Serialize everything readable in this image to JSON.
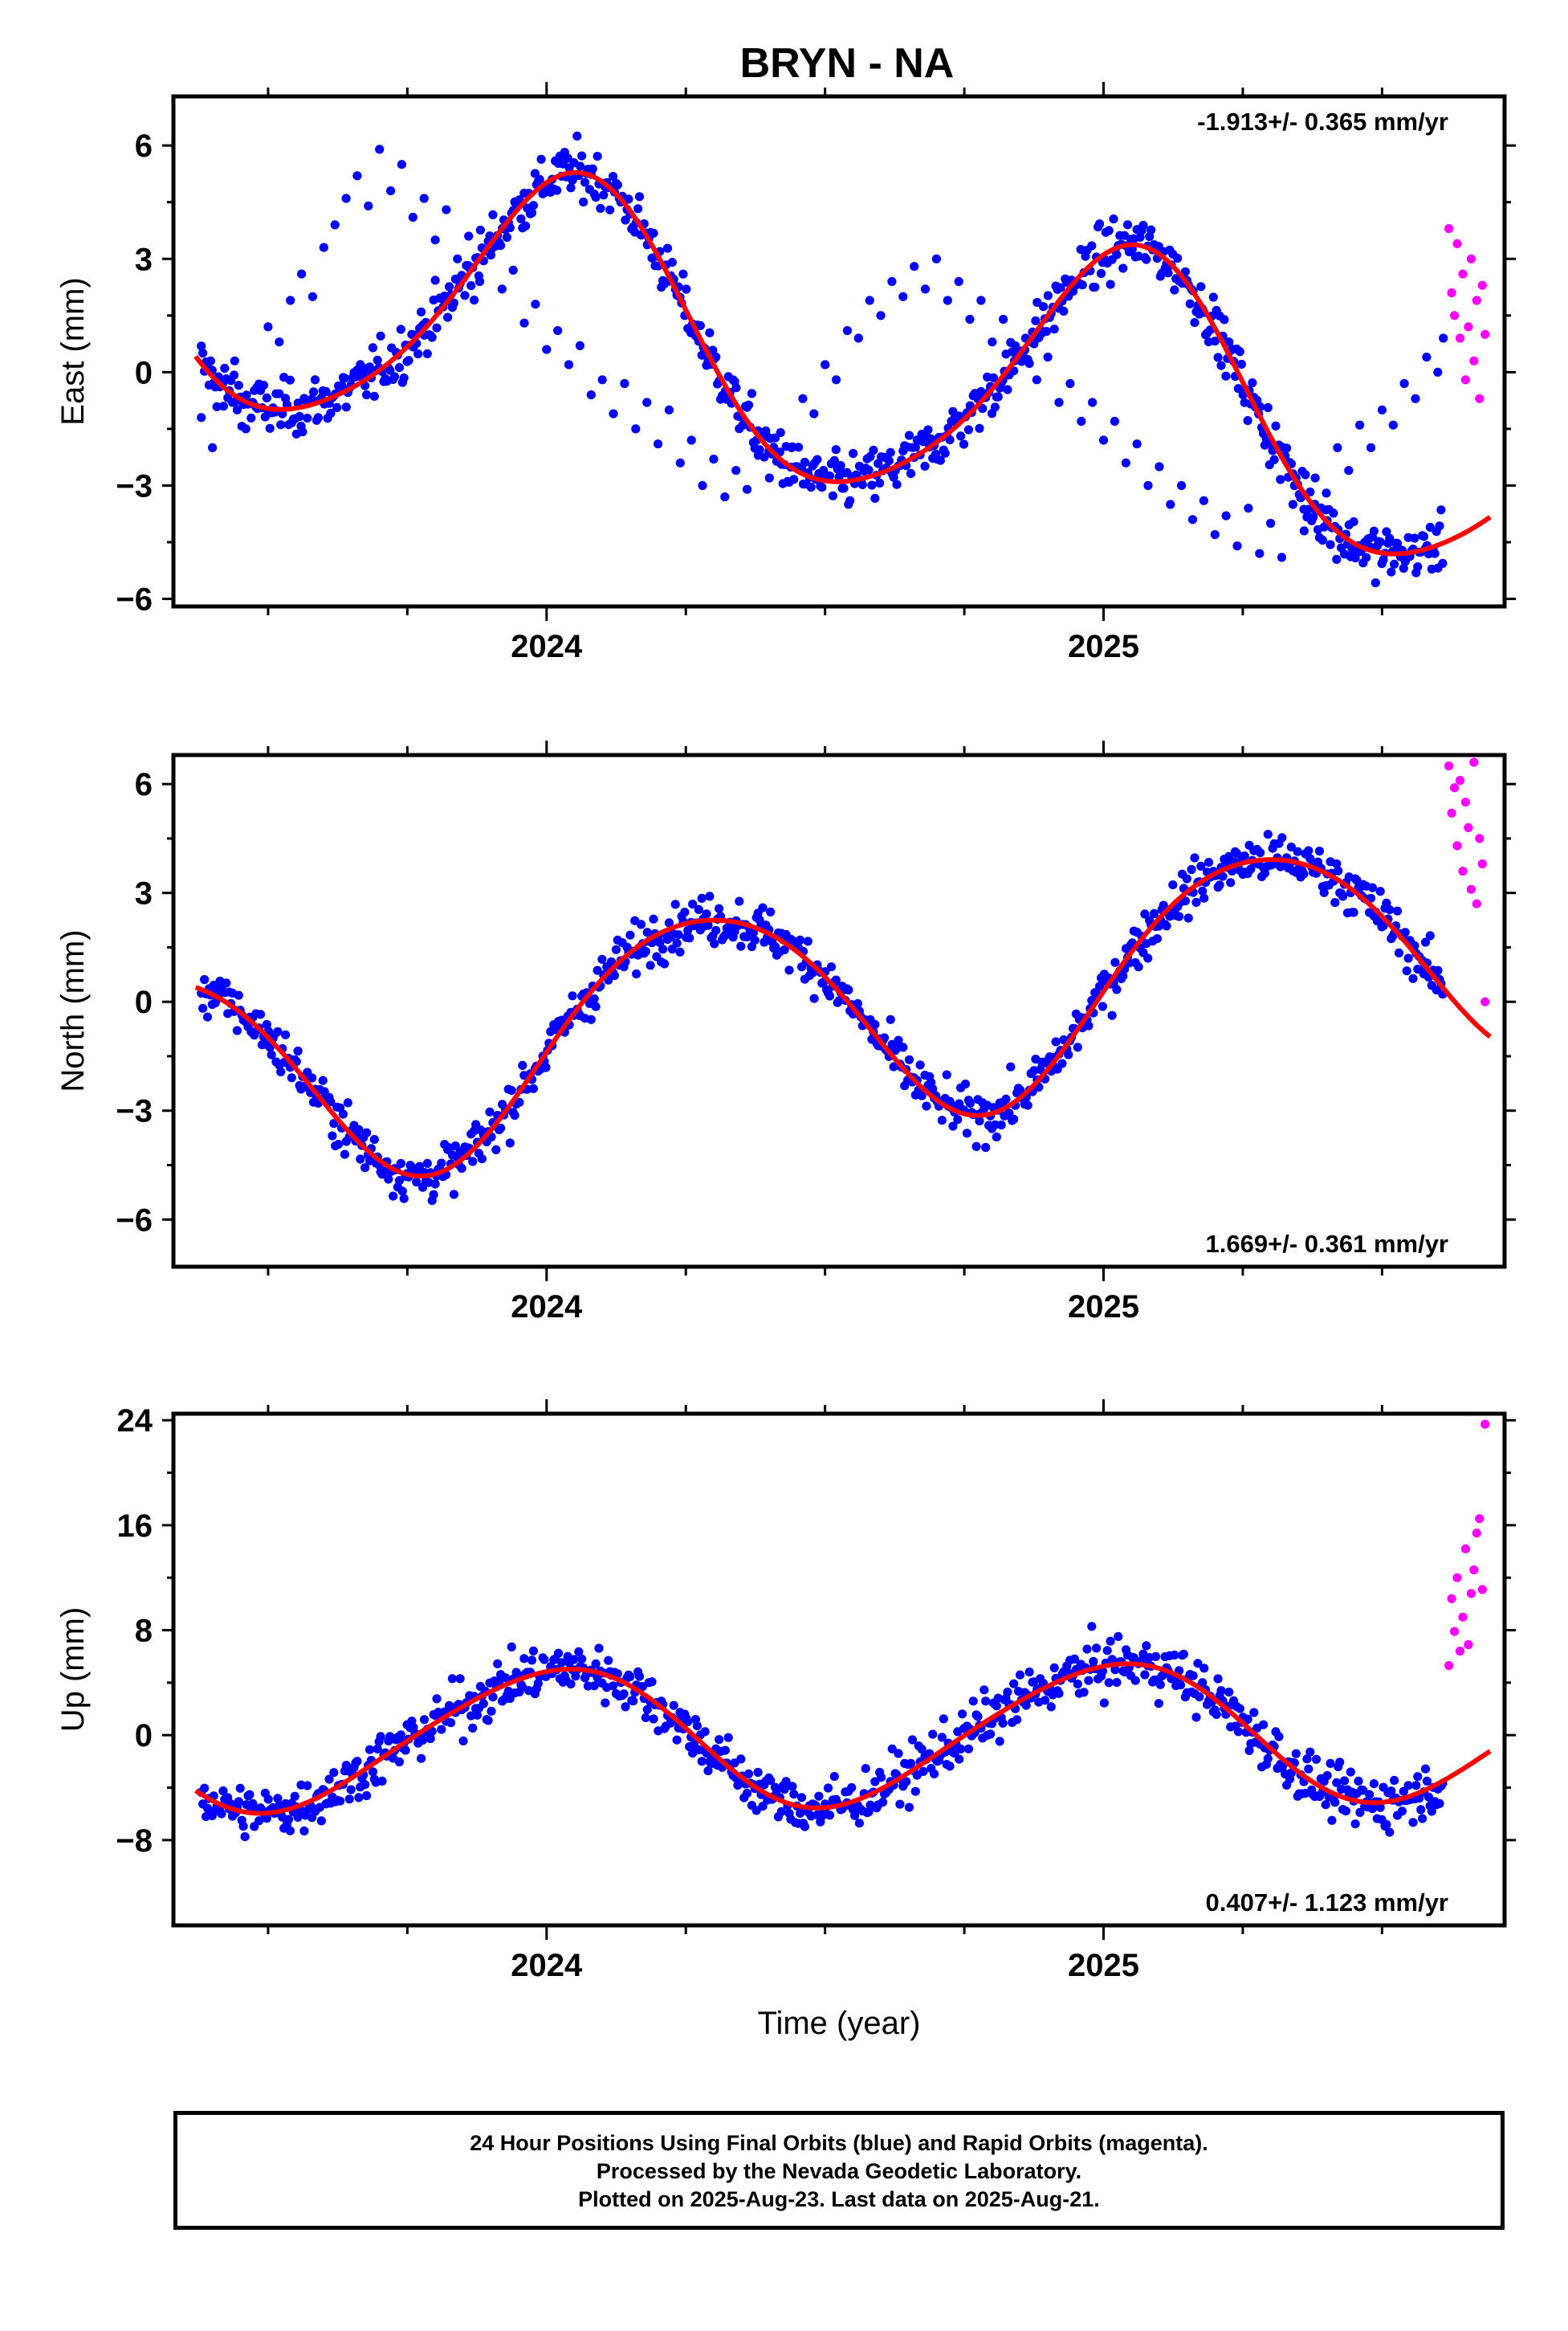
{
  "title": "BRYN - NA",
  "footer": {
    "line1": "24 Hour Positions Using Final Orbits (blue) and Rapid Orbits (magenta).",
    "line2": "Processed by the Nevada Geodetic Laboratory.",
    "line3": "Plotted on 2025-Aug-23. Last data on 2025-Aug-21."
  },
  "colors": {
    "final_orbits": "#0000ff",
    "rapid_orbits": "#ff00ff",
    "fit_line": "#ff0000",
    "frame": "#000000"
  },
  "chart_data": [
    {
      "type": "scatter",
      "id": "east",
      "ylabel": "East (mm)",
      "xlabel": "",
      "rate_label": "-1.913+/- 0.365 mm/yr",
      "rate_position": "top-right",
      "xlim": [
        2023.33,
        2025.72
      ],
      "ylim": [
        -6.2,
        7.3
      ],
      "xticks": [
        2024,
        2025
      ],
      "xtick_labels": [
        "2024",
        "2025"
      ],
      "yticks": [
        -6,
        -3,
        0,
        3,
        6
      ],
      "ytick_labels": [
        "−6",
        "−3",
        "0",
        "3",
        "6"
      ],
      "grid": false,
      "series": [
        {
          "name": "Final Orbits",
          "color": "blue",
          "x_range": [
            2023.38,
            2025.61
          ],
          "points": [
            [
              2023.38,
              -1.2
            ],
            [
              2023.4,
              -2.0
            ],
            [
              2023.42,
              -0.9
            ],
            [
              2023.44,
              0.3
            ],
            [
              2023.46,
              -1.5
            ],
            [
              2023.48,
              -0.4
            ],
            [
              2023.5,
              1.2
            ],
            [
              2023.52,
              0.8
            ],
            [
              2023.54,
              1.9
            ],
            [
              2023.56,
              2.6
            ],
            [
              2023.58,
              2.0
            ],
            [
              2023.6,
              3.3
            ],
            [
              2023.62,
              3.9
            ],
            [
              2023.64,
              4.6
            ],
            [
              2023.66,
              5.2
            ],
            [
              2023.68,
              4.4
            ],
            [
              2023.7,
              5.9
            ],
            [
              2023.72,
              4.8
            ],
            [
              2023.74,
              5.5
            ],
            [
              2023.76,
              4.1
            ],
            [
              2023.78,
              4.6
            ],
            [
              2023.8,
              3.5
            ],
            [
              2023.82,
              4.3
            ],
            [
              2023.84,
              3.0
            ],
            [
              2023.86,
              3.6
            ],
            [
              2023.88,
              2.4
            ],
            [
              2023.9,
              3.1
            ],
            [
              2023.92,
              2.2
            ],
            [
              2023.94,
              2.7
            ],
            [
              2023.96,
              1.3
            ],
            [
              2023.98,
              1.8
            ],
            [
              2024.0,
              0.6
            ],
            [
              2024.02,
              1.1
            ],
            [
              2024.04,
              0.2
            ],
            [
              2024.06,
              0.7
            ],
            [
              2024.08,
              -0.6
            ],
            [
              2024.1,
              -0.2
            ],
            [
              2024.12,
              -1.1
            ],
            [
              2024.14,
              -0.3
            ],
            [
              2024.16,
              -1.5
            ],
            [
              2024.18,
              -0.8
            ],
            [
              2024.2,
              -1.9
            ],
            [
              2024.22,
              -1.0
            ],
            [
              2024.24,
              -2.4
            ],
            [
              2024.26,
              -1.8
            ],
            [
              2024.28,
              -3.0
            ],
            [
              2024.3,
              -2.3
            ],
            [
              2024.32,
              -3.3
            ],
            [
              2024.34,
              -2.6
            ],
            [
              2024.36,
              -3.1
            ],
            [
              2024.38,
              -2.2
            ],
            [
              2024.4,
              -2.8
            ],
            [
              2024.42,
              -1.6
            ],
            [
              2024.44,
              -2.0
            ],
            [
              2024.46,
              -0.7
            ],
            [
              2024.48,
              -1.1
            ],
            [
              2024.5,
              0.2
            ],
            [
              2024.52,
              -0.2
            ],
            [
              2024.54,
              1.1
            ],
            [
              2024.56,
              0.9
            ],
            [
              2024.58,
              1.9
            ],
            [
              2024.6,
              1.5
            ],
            [
              2024.62,
              2.4
            ],
            [
              2024.64,
              2.0
            ],
            [
              2024.66,
              2.8
            ],
            [
              2024.68,
              2.2
            ],
            [
              2024.7,
              3.0
            ],
            [
              2024.72,
              1.9
            ],
            [
              2024.74,
              2.4
            ],
            [
              2024.76,
              1.4
            ],
            [
              2024.78,
              1.9
            ],
            [
              2024.8,
              0.8
            ],
            [
              2024.82,
              1.4
            ],
            [
              2024.84,
              0.3
            ],
            [
              2024.86,
              0.9
            ],
            [
              2024.88,
              -0.2
            ],
            [
              2024.9,
              0.4
            ],
            [
              2024.92,
              -0.8
            ],
            [
              2024.94,
              -0.3
            ],
            [
              2024.96,
              -1.3
            ],
            [
              2024.98,
              -0.8
            ],
            [
              2025.0,
              -1.8
            ],
            [
              2025.02,
              -1.3
            ],
            [
              2025.04,
              -2.4
            ],
            [
              2025.06,
              -1.9
            ],
            [
              2025.08,
              -3.0
            ],
            [
              2025.1,
              -2.5
            ],
            [
              2025.12,
              -3.5
            ],
            [
              2025.14,
              -3.0
            ],
            [
              2025.16,
              -3.9
            ],
            [
              2025.18,
              -3.4
            ],
            [
              2025.2,
              -4.3
            ],
            [
              2025.22,
              -3.8
            ],
            [
              2025.24,
              -4.6
            ],
            [
              2025.26,
              -3.6
            ],
            [
              2025.28,
              -4.8
            ],
            [
              2025.3,
              -4.0
            ],
            [
              2025.32,
              -4.9
            ],
            [
              2025.34,
              -3.5
            ],
            [
              2025.36,
              -4.2
            ],
            [
              2025.38,
              -2.8
            ],
            [
              2025.4,
              -3.2
            ],
            [
              2025.42,
              -2.0
            ],
            [
              2025.44,
              -2.6
            ],
            [
              2025.46,
              -1.4
            ],
            [
              2025.48,
              -2.0
            ],
            [
              2025.5,
              -1.0
            ],
            [
              2025.52,
              -1.4
            ],
            [
              2025.54,
              -0.3
            ],
            [
              2025.56,
              -0.7
            ],
            [
              2025.58,
              0.4
            ],
            [
              2025.6,
              0.0
            ],
            [
              2025.61,
              0.9
            ]
          ]
        },
        {
          "name": "Rapid Orbits",
          "color": "magenta",
          "points": [
            [
              2025.62,
              3.8
            ],
            [
              2025.625,
              2.1
            ],
            [
              2025.63,
              1.5
            ],
            [
              2025.635,
              3.4
            ],
            [
              2025.64,
              0.9
            ],
            [
              2025.645,
              2.6
            ],
            [
              2025.65,
              -0.2
            ],
            [
              2025.655,
              1.2
            ],
            [
              2025.66,
              3.0
            ],
            [
              2025.665,
              0.3
            ],
            [
              2025.67,
              1.9
            ],
            [
              2025.675,
              -0.7
            ],
            [
              2025.68,
              2.3
            ],
            [
              2025.685,
              1.0
            ]
          ]
        },
        {
          "name": "Fit",
          "color": "red",
          "kind": "line",
          "rate": -1.913,
          "offset": 0.4,
          "amp1": 3.6,
          "phase1": 1.3,
          "amp2": 0.5,
          "phase2": 0.4
        }
      ]
    },
    {
      "type": "scatter",
      "id": "north",
      "ylabel": "North (mm)",
      "xlabel": "",
      "rate_label": "1.669+/- 0.361 mm/yr",
      "rate_position": "bottom-right",
      "xlim": [
        2023.33,
        2025.72
      ],
      "ylim": [
        -7.3,
        6.8
      ],
      "xticks": [
        2024,
        2025
      ],
      "xtick_labels": [
        "2024",
        "2025"
      ],
      "yticks": [
        -6,
        -3,
        0,
        3,
        6
      ],
      "ytick_labels": [
        "−6",
        "−3",
        "0",
        "3",
        "6"
      ],
      "grid": false,
      "series": [
        {
          "name": "Final Orbits",
          "color": "blue",
          "x_range": [
            2023.38,
            2025.61
          ]
        },
        {
          "name": "Rapid Orbits",
          "color": "magenta",
          "points": [
            [
              2025.62,
              6.5
            ],
            [
              2025.625,
              5.2
            ],
            [
              2025.63,
              5.9
            ],
            [
              2025.635,
              4.3
            ],
            [
              2025.64,
              6.1
            ],
            [
              2025.645,
              3.6
            ],
            [
              2025.65,
              5.5
            ],
            [
              2025.655,
              4.8
            ],
            [
              2025.66,
              3.1
            ],
            [
              2025.665,
              6.6
            ],
            [
              2025.67,
              2.7
            ],
            [
              2025.675,
              4.5
            ],
            [
              2025.68,
              3.8
            ],
            [
              2025.685,
              0.0
            ]
          ]
        },
        {
          "name": "Fit",
          "color": "red",
          "kind": "line",
          "rate": 1.669,
          "offset": -0.2,
          "amp1": 3.1,
          "phase1": -0.2,
          "amp2": 0.3,
          "phase2": 1.1
        }
      ]
    },
    {
      "type": "scatter",
      "id": "up",
      "ylabel": "Up (mm)",
      "xlabel": "Time (year)",
      "rate_label": "0.407+/- 1.123 mm/yr",
      "rate_position": "bottom-right",
      "xlim": [
        2023.33,
        2025.72
      ],
      "ylim": [
        -14.5,
        24.5
      ],
      "xticks": [
        2024,
        2025
      ],
      "xtick_labels": [
        "2024",
        "2025"
      ],
      "yticks": [
        -8,
        0,
        8,
        16,
        24
      ],
      "ytick_labels": [
        "−8",
        "0",
        "8",
        "16",
        "24"
      ],
      "grid": false,
      "series": [
        {
          "name": "Final Orbits",
          "color": "blue",
          "x_range": [
            2023.38,
            2025.61
          ]
        },
        {
          "name": "Rapid Orbits",
          "color": "magenta",
          "points": [
            [
              2025.62,
              5.3
            ],
            [
              2025.625,
              10.4
            ],
            [
              2025.63,
              7.9
            ],
            [
              2025.635,
              12.0
            ],
            [
              2025.64,
              6.4
            ],
            [
              2025.645,
              9.0
            ],
            [
              2025.65,
              14.2
            ],
            [
              2025.655,
              6.9
            ],
            [
              2025.66,
              10.8
            ],
            [
              2025.665,
              12.6
            ],
            [
              2025.67,
              15.4
            ],
            [
              2025.675,
              16.5
            ],
            [
              2025.68,
              11.1
            ],
            [
              2025.685,
              23.7
            ]
          ]
        },
        {
          "name": "Fit",
          "color": "red",
          "kind": "line",
          "rate": 0.407,
          "offset": 0.0,
          "amp1": 5.3,
          "phase1": 1.5,
          "amp2": 0.5,
          "phase2": -0.5
        }
      ]
    }
  ]
}
